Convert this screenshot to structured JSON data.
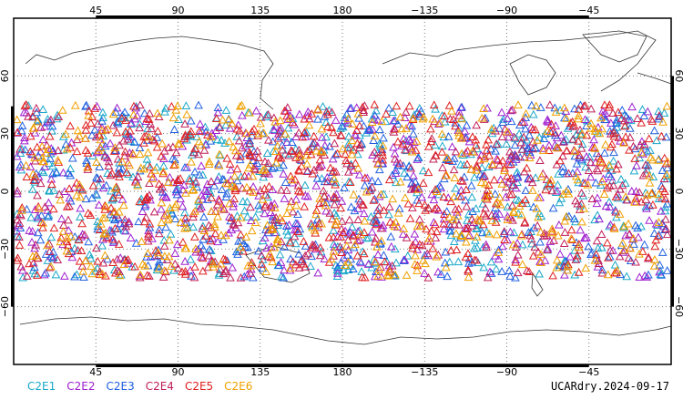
{
  "chart_data": {
    "type": "scatter",
    "projection": "equirectangular, centered on 180",
    "x_tick_labels_top": [
      "45",
      "90",
      "135",
      "180",
      "−135",
      "−90",
      "−45"
    ],
    "x_tick_labels_bottom": [
      "45",
      "90",
      "135",
      "180",
      "−135",
      "−90",
      "−45"
    ],
    "y_tick_labels_left": [
      "60",
      "30",
      "0",
      "−30",
      "−60"
    ],
    "y_tick_labels_right": [
      "60",
      "30",
      "0",
      "−30",
      "−60"
    ],
    "lat_range": [
      -90,
      90
    ],
    "lon_range_from_left_edge_deg": [
      0,
      360
    ],
    "marker": "hollow triangle",
    "occultation_lat_band": [
      -45,
      45
    ],
    "grid": "dotted",
    "series": [
      {
        "name": "C2E1",
        "color": "#1aa8c9"
      },
      {
        "name": "C2E2",
        "color": "#a020d0"
      },
      {
        "name": "C2E3",
        "color": "#2060e0"
      },
      {
        "name": "C2E4",
        "color": "#c0205a"
      },
      {
        "name": "C2E5",
        "color": "#e02020"
      },
      {
        "name": "C2E6",
        "color": "#f0a000"
      }
    ],
    "annotation": "UCARdry.2024-09-17"
  }
}
